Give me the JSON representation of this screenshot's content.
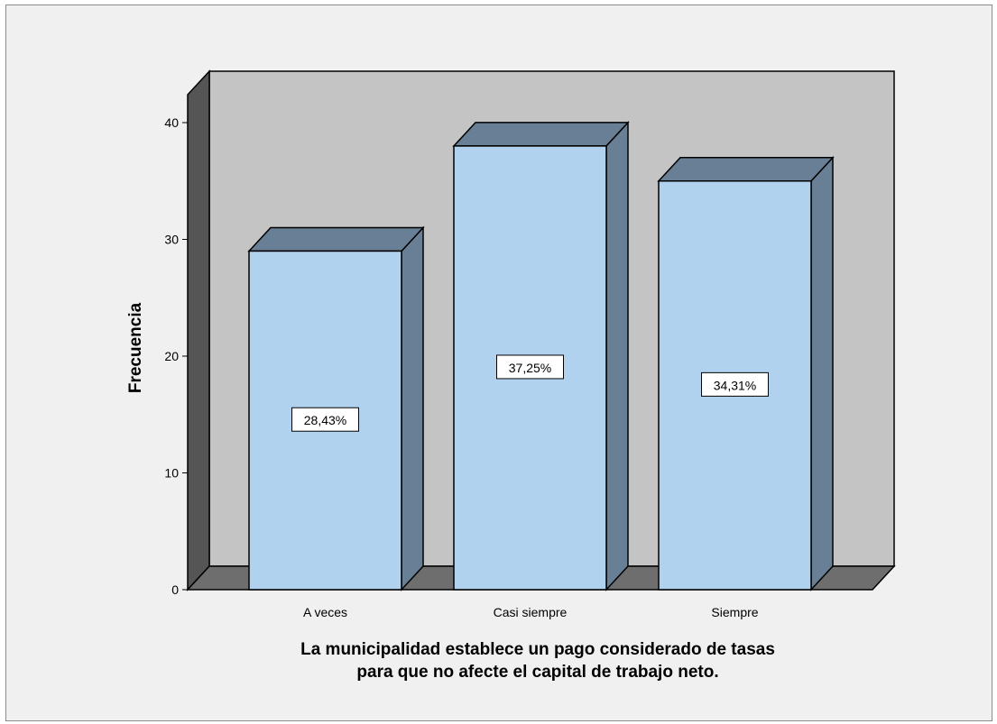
{
  "chart_data": {
    "type": "bar",
    "style": "3d",
    "categories": [
      "A veces",
      "Casi siempre",
      "Siempre"
    ],
    "values": [
      29,
      38,
      35
    ],
    "data_labels": [
      "28,43%",
      "37,25%",
      "34,31%"
    ],
    "ylabel": "Frecuencia",
    "xlabel_lines": [
      "La municipalidad establece un pago considerado de tasas",
      "para que no afecte el capital de trabajo neto."
    ],
    "yticks": [
      0,
      10,
      20,
      30,
      40
    ],
    "ylim": [
      0,
      40
    ],
    "grid": false,
    "colors": {
      "bar_front": "#b0d2ee",
      "bar_top": "#687f95",
      "bar_side": "#687f95",
      "back_wall": "#c4c4c4",
      "floor": "#6e6e6e",
      "side_wall": "#555555",
      "outline": "#000000"
    }
  }
}
